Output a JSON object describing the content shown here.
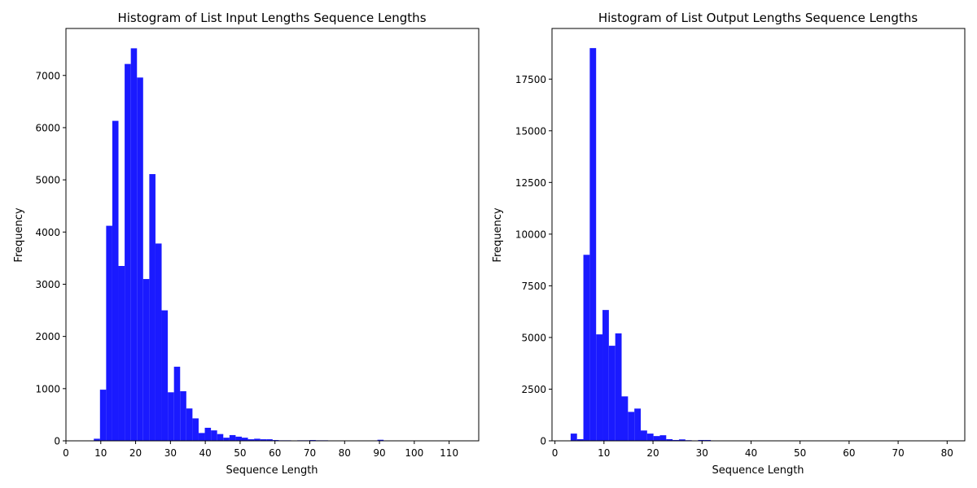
{
  "colors": {
    "bar": "#1a1aff",
    "axis": "#000000",
    "background": "#ffffff"
  },
  "chart_data": [
    {
      "type": "bar",
      "title": "Histogram of List Input Lengths Sequence Lengths",
      "xlabel": "Sequence Length",
      "ylabel": "Frequency",
      "xlim": [
        0,
        118.5
      ],
      "ylim": [
        0,
        7900
      ],
      "xticks": [
        "0",
        "10",
        "20",
        "30",
        "40",
        "50",
        "60",
        "70",
        "80",
        "90",
        "100",
        "110"
      ],
      "xtick_values": [
        0,
        10,
        20,
        30,
        40,
        50,
        60,
        70,
        80,
        90,
        100,
        110
      ],
      "yticks": [
        "0",
        "1000",
        "2000",
        "3000",
        "4000",
        "5000",
        "6000",
        "7000"
      ],
      "ytick_values": [
        0,
        1000,
        2000,
        3000,
        4000,
        5000,
        6000,
        7000
      ],
      "bin_width": 1.77,
      "bins": [
        {
          "x0": 8.0,
          "value": 40
        },
        {
          "x0": 9.77,
          "value": 980
        },
        {
          "x0": 11.54,
          "value": 4120
        },
        {
          "x0": 13.31,
          "value": 6130
        },
        {
          "x0": 15.08,
          "value": 3350
        },
        {
          "x0": 16.85,
          "value": 7220
        },
        {
          "x0": 18.62,
          "value": 7520
        },
        {
          "x0": 20.39,
          "value": 6960
        },
        {
          "x0": 22.16,
          "value": 3100
        },
        {
          "x0": 23.93,
          "value": 5110
        },
        {
          "x0": 25.7,
          "value": 3780
        },
        {
          "x0": 27.47,
          "value": 2500
        },
        {
          "x0": 29.24,
          "value": 930
        },
        {
          "x0": 31.01,
          "value": 1420
        },
        {
          "x0": 32.78,
          "value": 950
        },
        {
          "x0": 34.55,
          "value": 620
        },
        {
          "x0": 36.32,
          "value": 430
        },
        {
          "x0": 38.09,
          "value": 150
        },
        {
          "x0": 39.86,
          "value": 250
        },
        {
          "x0": 41.63,
          "value": 200
        },
        {
          "x0": 43.4,
          "value": 130
        },
        {
          "x0": 45.17,
          "value": 60
        },
        {
          "x0": 46.94,
          "value": 110
        },
        {
          "x0": 48.71,
          "value": 80
        },
        {
          "x0": 50.48,
          "value": 60
        },
        {
          "x0": 52.25,
          "value": 30
        },
        {
          "x0": 54.02,
          "value": 40
        },
        {
          "x0": 55.79,
          "value": 30
        },
        {
          "x0": 57.56,
          "value": 30
        },
        {
          "x0": 59.33,
          "value": 15
        },
        {
          "x0": 61.1,
          "value": 10
        },
        {
          "x0": 62.87,
          "value": 10
        },
        {
          "x0": 66.41,
          "value": 10
        },
        {
          "x0": 68.18,
          "value": 10
        },
        {
          "x0": 69.95,
          "value": 15
        },
        {
          "x0": 71.72,
          "value": 10
        },
        {
          "x0": 73.49,
          "value": 10
        },
        {
          "x0": 89.42,
          "value": 20
        }
      ]
    },
    {
      "type": "bar",
      "title": "Histogram of List Output Lengths Sequence Lengths",
      "xlabel": "Sequence Length",
      "ylabel": "Frequency",
      "xlim": [
        -0.6,
        83.6
      ],
      "ylim": [
        0,
        19950
      ],
      "xticks": [
        "0",
        "10",
        "20",
        "30",
        "40",
        "50",
        "60",
        "70",
        "80"
      ],
      "xtick_values": [
        0,
        10,
        20,
        30,
        40,
        50,
        60,
        70,
        80
      ],
      "yticks": [
        "0",
        "2500",
        "5000",
        "7500",
        "10000",
        "12500",
        "15000",
        "17500"
      ],
      "ytick_values": [
        0,
        2500,
        5000,
        7500,
        10000,
        12500,
        15000,
        17500
      ],
      "bin_width": 1.3,
      "bins": [
        {
          "x0": 3.2,
          "value": 350
        },
        {
          "x0": 4.5,
          "value": 80
        },
        {
          "x0": 5.8,
          "value": 9000
        },
        {
          "x0": 7.1,
          "value": 19000
        },
        {
          "x0": 8.4,
          "value": 5150
        },
        {
          "x0": 9.7,
          "value": 6330
        },
        {
          "x0": 11.0,
          "value": 4600
        },
        {
          "x0": 12.3,
          "value": 5200
        },
        {
          "x0": 13.6,
          "value": 2150
        },
        {
          "x0": 14.9,
          "value": 1400
        },
        {
          "x0": 16.2,
          "value": 1560
        },
        {
          "x0": 17.5,
          "value": 500
        },
        {
          "x0": 18.8,
          "value": 350
        },
        {
          "x0": 20.1,
          "value": 230
        },
        {
          "x0": 21.4,
          "value": 270
        },
        {
          "x0": 22.7,
          "value": 80
        },
        {
          "x0": 24.0,
          "value": 40
        },
        {
          "x0": 25.3,
          "value": 70
        },
        {
          "x0": 26.6,
          "value": 30
        },
        {
          "x0": 29.2,
          "value": 40
        },
        {
          "x0": 30.5,
          "value": 40
        }
      ]
    }
  ]
}
